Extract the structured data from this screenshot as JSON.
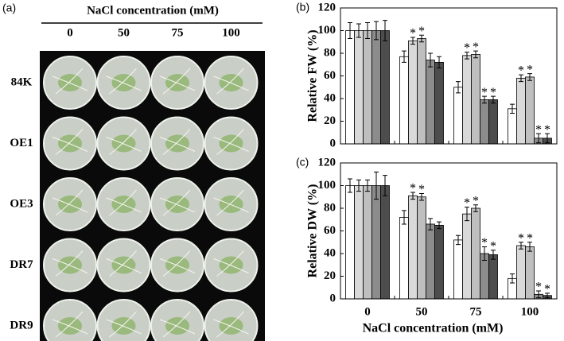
{
  "photo_panel": {
    "label": "(a)",
    "header": "NaCl concentration (mM)",
    "columns": [
      "0",
      "50",
      "75",
      "100"
    ],
    "rows": [
      "84K",
      "OE1",
      "OE3",
      "DR7",
      "DR9"
    ]
  },
  "chart_data": [
    {
      "type": "bar",
      "label": "(b)",
      "y_title": "Relative FW (%)",
      "categories": [
        null,
        null,
        null,
        null
      ],
      "ylim": [
        0,
        120
      ],
      "yticks": [
        0,
        20,
        40,
        60,
        80,
        100,
        120
      ],
      "series": [
        {
          "color": "#ffffff",
          "values": [
            100,
            77,
            50,
            31
          ],
          "errors": [
            7,
            5,
            5,
            4
          ],
          "sig": [
            null,
            null,
            null,
            null
          ]
        },
        {
          "color": "#d9d9d9",
          "values": [
            100,
            91,
            78,
            58
          ],
          "errors": [
            6,
            3,
            3,
            3
          ],
          "sig": [
            null,
            "*",
            "*",
            "*"
          ]
        },
        {
          "color": "#bfbfbf",
          "values": [
            100,
            93,
            79,
            59
          ],
          "errors": [
            7,
            3,
            3,
            3
          ],
          "sig": [
            null,
            "*",
            "*",
            "*"
          ]
        },
        {
          "color": "#8c8c8c",
          "values": [
            100,
            74,
            39,
            5
          ],
          "errors": [
            8,
            6,
            3,
            4
          ],
          "sig": [
            null,
            null,
            "*",
            "*"
          ]
        },
        {
          "color": "#4d4d4d",
          "values": [
            100,
            72,
            39,
            5
          ],
          "errors": [
            9,
            5,
            3,
            4
          ],
          "sig": [
            null,
            null,
            "*",
            "*"
          ]
        }
      ]
    },
    {
      "type": "bar",
      "label": "(c)",
      "y_title": "Relative DW (%)",
      "x_title": "NaCl concentration (mM)",
      "categories": [
        "0",
        "50",
        "75",
        "100"
      ],
      "ylim": [
        0,
        120
      ],
      "yticks": [
        0,
        20,
        40,
        60,
        80,
        100,
        120
      ],
      "series": [
        {
          "color": "#ffffff",
          "values": [
            100,
            72,
            52,
            18
          ],
          "errors": [
            6,
            6,
            4,
            4
          ],
          "sig": [
            null,
            null,
            null,
            null
          ]
        },
        {
          "color": "#d9d9d9",
          "values": [
            100,
            91,
            75,
            47
          ],
          "errors": [
            5,
            3,
            6,
            3
          ],
          "sig": [
            null,
            "*",
            "*",
            "*"
          ]
        },
        {
          "color": "#bfbfbf",
          "values": [
            100,
            90,
            80,
            46
          ],
          "errors": [
            5,
            3,
            3,
            4
          ],
          "sig": [
            null,
            "*",
            "*",
            "*"
          ]
        },
        {
          "color": "#8c8c8c",
          "values": [
            100,
            66,
            40,
            4
          ],
          "errors": [
            12,
            5,
            6,
            3
          ],
          "sig": [
            null,
            null,
            "*",
            "*"
          ]
        },
        {
          "color": "#4d4d4d",
          "values": [
            100,
            65,
            39,
            3
          ],
          "errors": [
            9,
            3,
            4,
            2
          ],
          "sig": [
            null,
            null,
            "*",
            "*"
          ]
        }
      ]
    }
  ]
}
